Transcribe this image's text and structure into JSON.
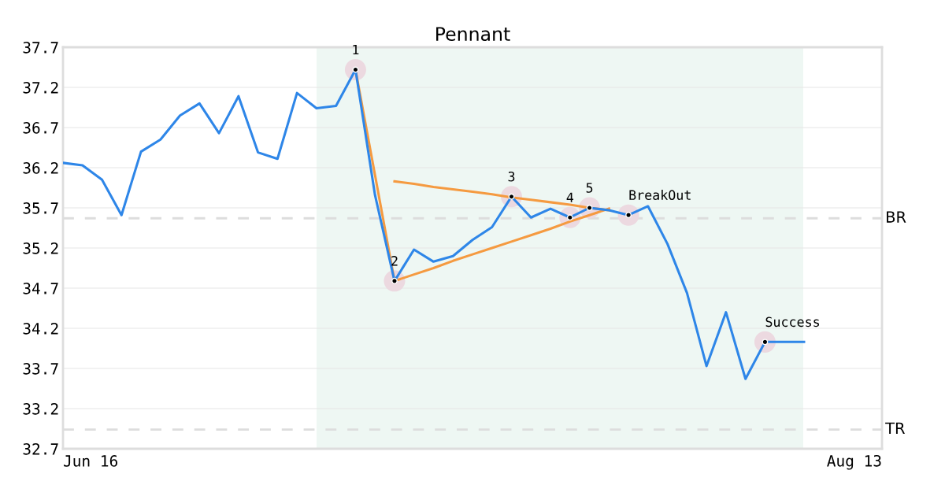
{
  "chart_data": {
    "type": "line",
    "title": "Pennant",
    "categories": [
      null,
      null,
      null,
      null,
      null,
      null,
      null,
      null,
      null,
      null,
      null,
      null,
      null,
      null,
      null,
      null,
      null,
      null,
      null,
      null,
      null,
      null,
      null,
      null,
      null,
      null,
      null,
      null,
      null,
      null,
      null,
      null,
      null,
      null,
      null,
      null,
      null,
      null,
      null,
      null,
      null,
      null,
      null
    ],
    "ylim": [
      32.7,
      37.7
    ],
    "yticks": [
      32.7,
      33.2,
      33.7,
      34.2,
      34.7,
      35.2,
      35.7,
      36.2,
      36.7,
      37.2,
      37.7
    ],
    "grid": "y",
    "series": [
      {
        "color": "#2e86e8",
        "values": [
          36.26,
          36.23,
          36.05,
          35.61,
          36.4,
          36.55,
          36.85,
          37.0,
          36.63,
          37.09,
          36.39,
          36.31,
          37.13,
          36.94,
          36.97,
          37.42,
          35.86,
          34.79,
          35.18,
          35.03,
          35.1,
          35.3,
          35.46,
          35.84,
          35.58,
          35.69,
          35.58,
          35.7,
          35.67,
          35.61,
          35.72,
          35.25,
          34.64,
          33.73,
          34.4,
          33.57,
          34.03,
          34.03,
          34.03,
          null,
          null,
          null,
          null
        ]
      },
      {
        "type": "line",
        "color": "#f59a40",
        "values": [
          null,
          null,
          null,
          null,
          null,
          null,
          null,
          null,
          null,
          null,
          null,
          null,
          null,
          null,
          null,
          37.42,
          36.11,
          34.79,
          null,
          null,
          null,
          null,
          null,
          null,
          null,
          null,
          null,
          null,
          null,
          null,
          null,
          null,
          null,
          null,
          null,
          null,
          null,
          null,
          null,
          null,
          null,
          null,
          null
        ]
      },
      {
        "type": "line",
        "color": "#f59a40",
        "values": [
          null,
          null,
          null,
          null,
          null,
          null,
          null,
          null,
          null,
          null,
          null,
          null,
          null,
          null,
          null,
          null,
          null,
          36.03,
          36.0,
          35.96,
          35.93,
          35.9,
          35.87,
          35.83,
          35.8,
          35.77,
          35.74,
          35.7,
          35.67,
          null,
          null,
          null,
          null,
          null,
          null,
          null,
          null,
          null,
          null,
          null,
          null,
          null,
          null
        ]
      },
      {
        "type": "line",
        "color": "#f59a40",
        "values": [
          null,
          null,
          null,
          null,
          null,
          null,
          null,
          null,
          null,
          null,
          null,
          null,
          null,
          null,
          null,
          null,
          null,
          34.79,
          34.87,
          34.95,
          35.04,
          35.12,
          35.2,
          35.28,
          35.36,
          35.44,
          35.53,
          35.61,
          35.69,
          null,
          null,
          null,
          null,
          null,
          null,
          null,
          null,
          null,
          null,
          null,
          null,
          null,
          null
        ]
      },
      {
        "type": "scatter",
        "color": "#000000",
        "marker": "circle",
        "values": [
          null,
          null,
          null,
          null,
          null,
          null,
          null,
          null,
          null,
          null,
          null,
          null,
          null,
          null,
          null,
          37.42,
          null,
          34.79,
          null,
          null,
          null,
          null,
          null,
          35.84,
          null,
          null,
          35.58,
          35.7,
          null,
          35.61,
          null,
          null,
          null,
          null,
          null,
          null,
          34.03,
          null,
          null,
          null,
          null,
          null,
          null
        ]
      }
    ],
    "ref_lines": [
      {
        "axis": "y",
        "value": 35.57,
        "label": "BR",
        "color": "#dddddd",
        "line_style": "dashed"
      },
      {
        "axis": "y",
        "value": 32.94,
        "label": "TR",
        "color": "#dddddd",
        "line_style": "dashed"
      }
    ],
    "annotations": [
      {
        "text": "1",
        "y": 37.42
      },
      {
        "text": "2",
        "y": 34.79
      },
      {
        "text": "3",
        "y": 35.84
      },
      {
        "text": "4",
        "y": 35.58
      },
      {
        "text": "5",
        "y": 35.7
      },
      {
        "text": "BreakOut",
        "y": 35.61
      },
      {
        "text": "Success",
        "y": 34.03
      },
      "Jun 16",
      "Aug 13"
    ]
  }
}
